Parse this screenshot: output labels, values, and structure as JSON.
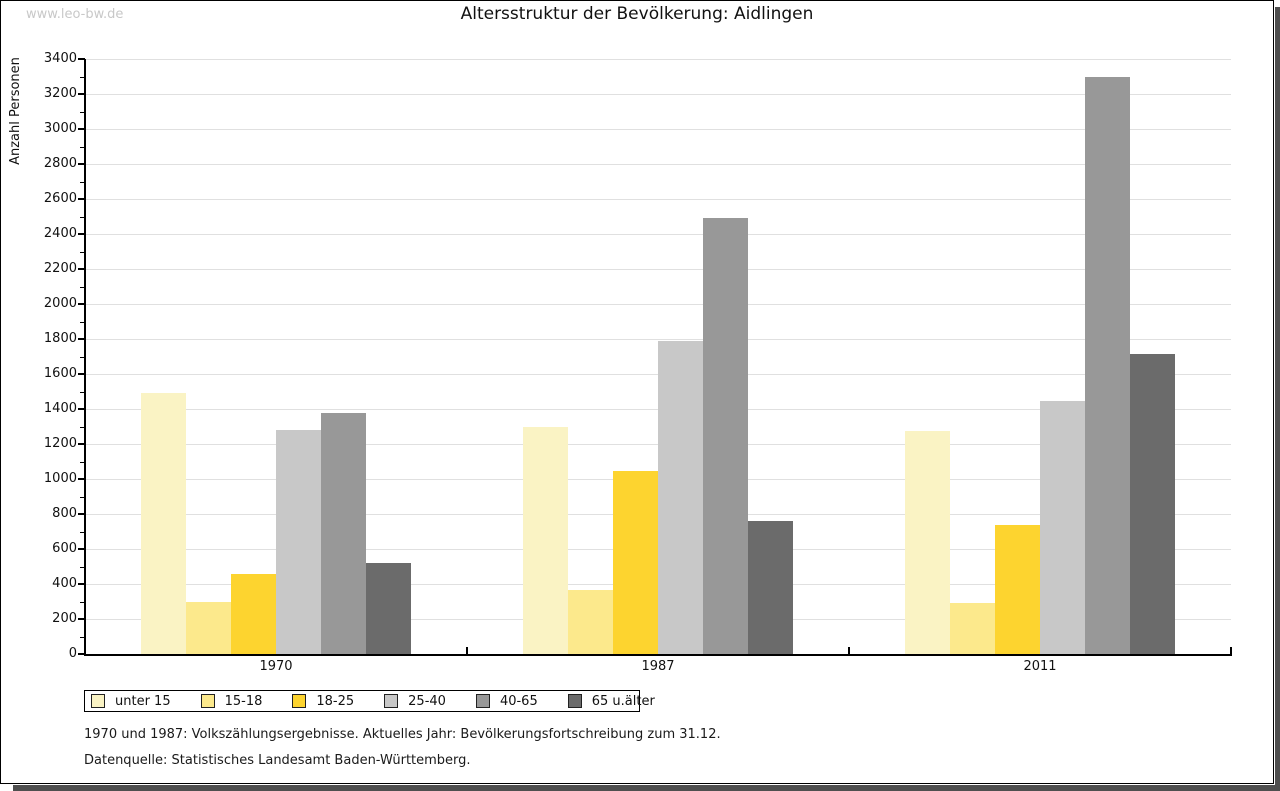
{
  "page": {
    "watermark": "www.leo-bw.de",
    "title": "Altersstruktur der Bevölkerung: Aidlingen",
    "footer_line1": "1970 und 1987: Volkszählungsergebnisse. Aktuelles Jahr: Bevölkerungsfortschreibung zum 31.12.",
    "footer_line2": "Datenquelle: Statistisches Landesamt Baden-Württemberg."
  },
  "chart_data": {
    "type": "bar",
    "title": "Altersstruktur der Bevölkerung: Aidlingen",
    "ylabel": "Anzahl Personen",
    "xlabel": "",
    "categories": [
      "1970",
      "1987",
      "2011"
    ],
    "series": [
      {
        "name": "unter 15",
        "color": "#FAF3C4",
        "values": [
          1490,
          1300,
          1275
        ]
      },
      {
        "name": "15-18",
        "color": "#FCE98C",
        "values": [
          295,
          365,
          290
        ]
      },
      {
        "name": "18-25",
        "color": "#FDD42F",
        "values": [
          460,
          1045,
          740
        ]
      },
      {
        "name": "25-40",
        "color": "#C8C8C8",
        "values": [
          1280,
          1790,
          1445
        ]
      },
      {
        "name": "40-65",
        "color": "#989898",
        "values": [
          1375,
          2490,
          3300
        ]
      },
      {
        "name": "65 u.älter",
        "color": "#6B6B6B",
        "values": [
          520,
          760,
          1715
        ]
      }
    ],
    "ylim": [
      0,
      3400
    ],
    "ytick_step": 200,
    "minor_tick_step": 100,
    "grid": "horizontal",
    "gridline_color": "#E0E0E0",
    "legend_position": "bottom-left"
  }
}
